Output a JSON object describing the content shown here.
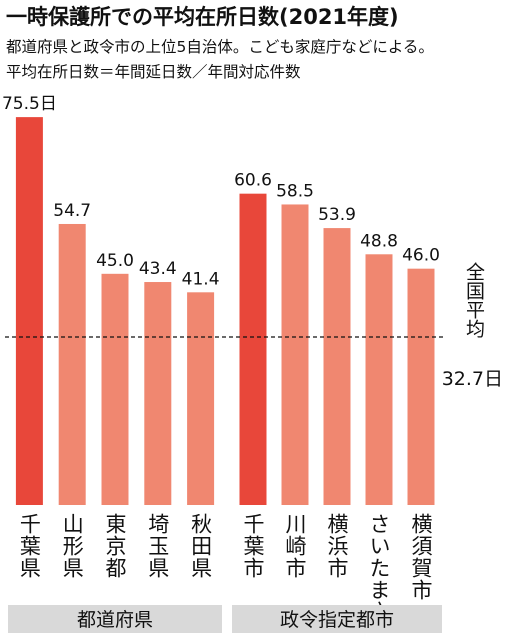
{
  "chart_data": {
    "type": "bar",
    "title": "一時保護所での平均在所日数(2021年度)",
    "subtitle": [
      "都道府県と政令市の上位5自治体。こども家庭庁などによる。",
      "平均在所日数＝年間延日数／年間対応件数"
    ],
    "ylim": [
      0,
      80
    ],
    "groups": [
      {
        "name": "都道府県",
        "categories": [
          "千葉県",
          "山形県",
          "東京都",
          "埼玉県",
          "秋田県"
        ],
        "values": [
          75.5,
          54.7,
          45.0,
          43.4,
          41.4
        ],
        "value_labels": [
          "75.5日",
          "54.7",
          "45.0",
          "43.4",
          "41.4"
        ],
        "colors": [
          "#e8473a",
          "#f08770",
          "#f08770",
          "#f08770",
          "#f08770"
        ]
      },
      {
        "name": "政令指定都市",
        "categories": [
          "千葉市",
          "川崎市",
          "横浜市",
          "さいたま市",
          "横須賀市"
        ],
        "values": [
          60.6,
          58.5,
          53.9,
          48.8,
          46.0
        ],
        "value_labels": [
          "60.6",
          "58.5",
          "53.9",
          "48.8",
          "46.0"
        ],
        "colors": [
          "#e8473a",
          "#f08770",
          "#f08770",
          "#f08770",
          "#f08770"
        ]
      }
    ],
    "average": {
      "label": "全国平均",
      "value": 32.7,
      "value_label": "32.7日"
    }
  }
}
